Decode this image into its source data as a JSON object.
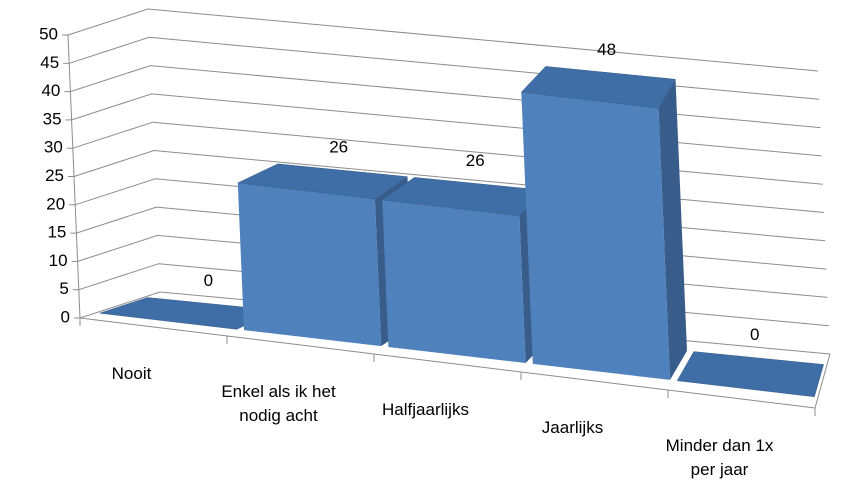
{
  "chart_data": {
    "type": "bar3d",
    "categories": [
      "Nooit",
      "Enkel als ik het nodig acht",
      "Halfjaarlijks",
      "Jaarlijks",
      "Minder dan 1x per jaar"
    ],
    "values": [
      0,
      26,
      26,
      48,
      0
    ],
    "color": "#4f81bd",
    "ylim": [
      0,
      50
    ],
    "yticks": [
      0,
      5,
      10,
      15,
      20,
      25,
      30,
      35,
      40,
      45,
      50
    ],
    "grid": true
  }
}
